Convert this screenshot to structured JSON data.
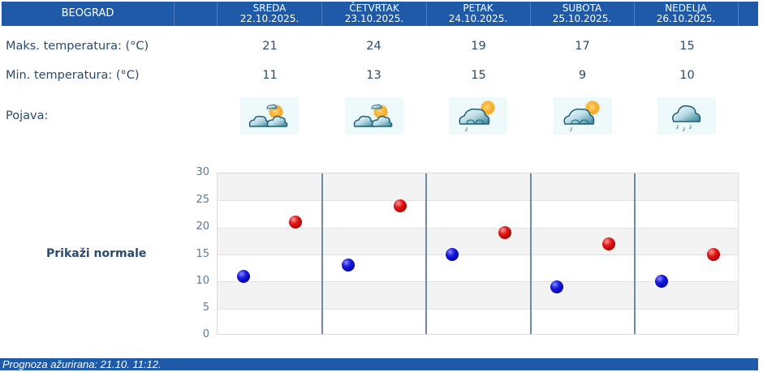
{
  "header": {
    "city": "BEOGRAD",
    "days": [
      {
        "name": "SREDA",
        "date": "22.10.2025."
      },
      {
        "name": "ČETVRTAK",
        "date": "23.10.2025."
      },
      {
        "name": "PETAK",
        "date": "24.10.2025."
      },
      {
        "name": "SUBOTA",
        "date": "25.10.2025."
      },
      {
        "name": "NEDELJA",
        "date": "26.10.2025."
      }
    ]
  },
  "rows": {
    "max_label": "Maks. temperatura: (°C)",
    "min_label": "Min. temperatura: (°C)",
    "phenomenon_label": "Pojava:",
    "max": [
      "21",
      "24",
      "19",
      "17",
      "15"
    ],
    "min": [
      "11",
      "13",
      "15",
      "9",
      "10"
    ],
    "icons": [
      "partly-cloudy-icon",
      "partly-cloudy-icon",
      "partly-cloudy-light-rain-icon",
      "partly-cloudy-light-rain-icon",
      "cloudy-rain-icon"
    ]
  },
  "normals_link": "Prikaži normale",
  "footer": {
    "updated": "Prognoza ažurirana:  21.10. 11:12."
  },
  "colors": {
    "header_bg": "#1f5aa8",
    "text": "#2a4a6e",
    "min_marker": "#0000c0",
    "max_marker": "#c00000"
  },
  "chart_data": {
    "type": "scatter",
    "title": "",
    "xlabel": "",
    "ylabel": "",
    "categories": [
      "SREDA 22.10.2025.",
      "ČETVRTAK 23.10.2025.",
      "PETAK 24.10.2025.",
      "SUBOTA 25.10.2025.",
      "NEDELJA 26.10.2025."
    ],
    "series": [
      {
        "name": "Min. temperatura",
        "color": "#0000c0",
        "values": [
          11,
          13,
          15,
          9,
          10
        ]
      },
      {
        "name": "Maks. temperatura",
        "color": "#c00000",
        "values": [
          21,
          24,
          19,
          17,
          15
        ]
      }
    ],
    "ylim": [
      0,
      30
    ],
    "yticks": [
      0,
      5,
      10,
      15,
      20,
      25,
      30
    ],
    "grid": true,
    "legend": "none"
  }
}
